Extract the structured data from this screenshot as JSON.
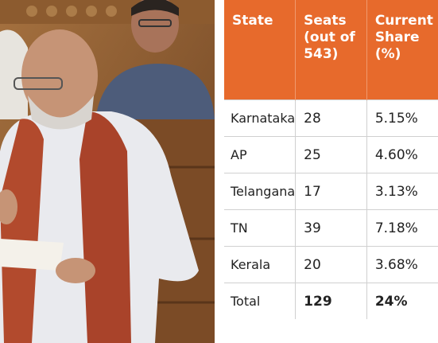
{
  "table": {
    "headers": [
      "State",
      "Seats (out of 543)",
      "Current Share (%)"
    ],
    "rows": [
      [
        "Karnataka",
        "28",
        "5.15%"
      ],
      [
        "AP",
        "25",
        "4.60%"
      ],
      [
        "Telangana",
        "17",
        "3.13%"
      ],
      [
        "TN",
        "39",
        "7.18%"
      ],
      [
        "Kerala",
        "20",
        "3.68%"
      ],
      [
        "Total",
        "129",
        "24%"
      ]
    ]
  }
}
